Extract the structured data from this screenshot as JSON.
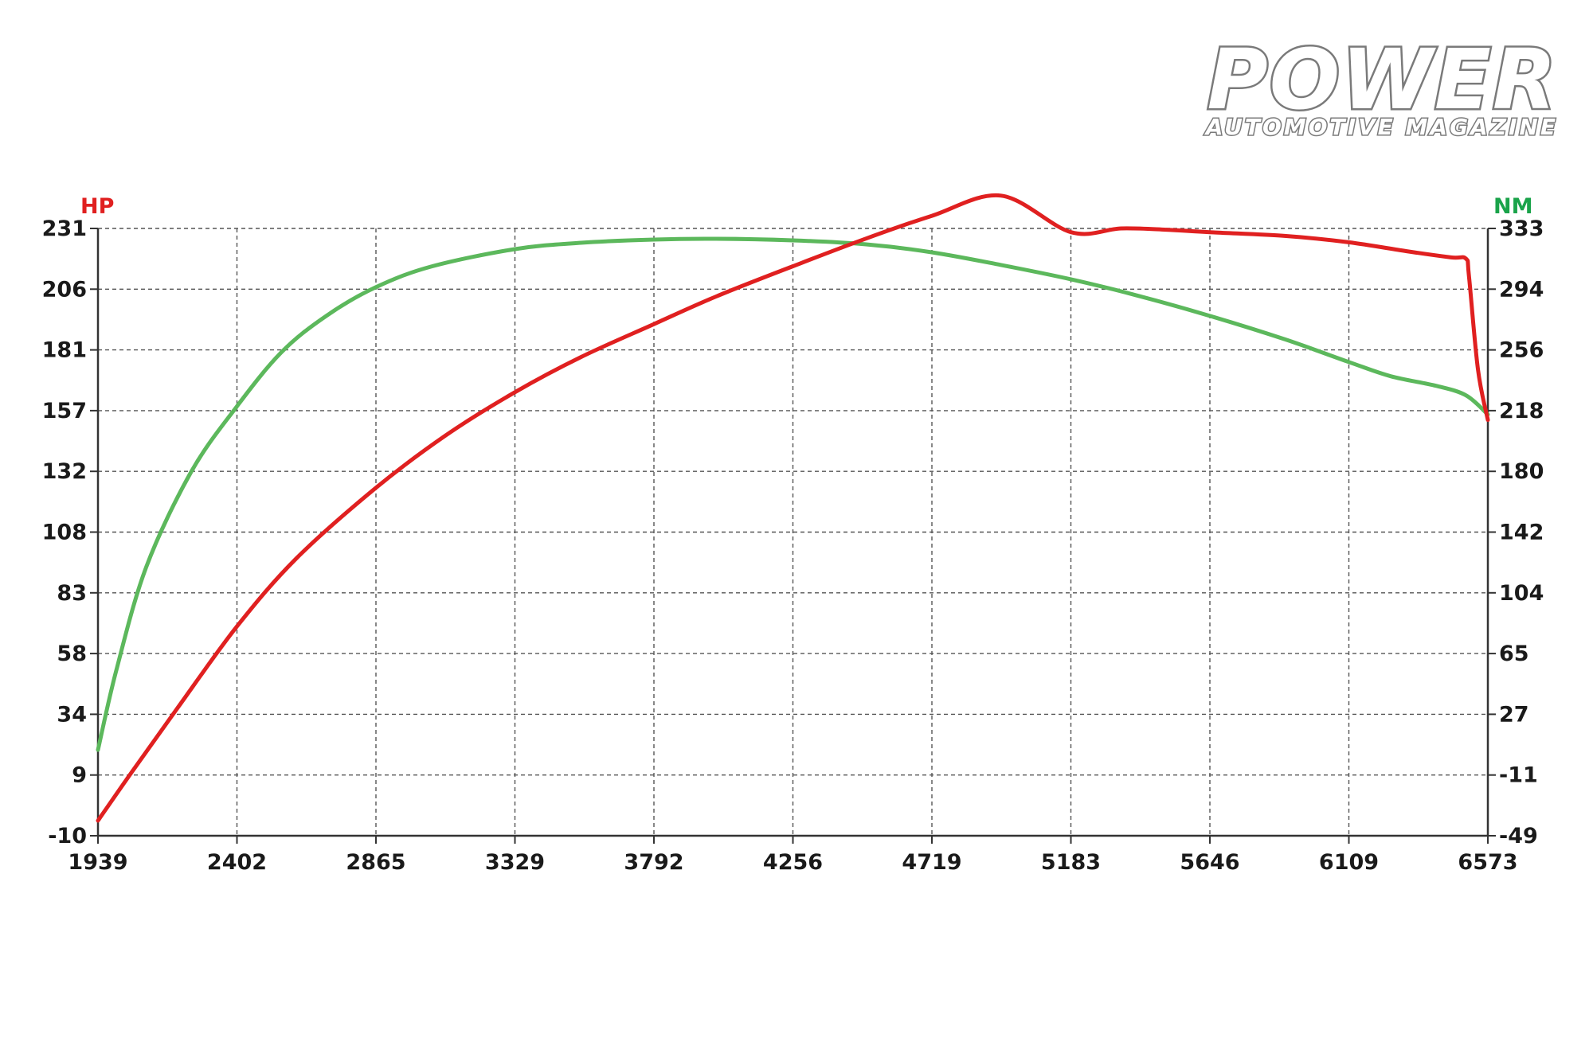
{
  "brand": {
    "name": "POWER",
    "tagline": "AUTOMOTIVE MAGAZINE"
  },
  "chart_data": {
    "type": "line",
    "xlabel": "",
    "x_ticks": [
      1939,
      2402,
      2865,
      3329,
      3792,
      4256,
      4719,
      5183,
      5646,
      6109,
      6573
    ],
    "xlim": [
      1939,
      6573
    ],
    "left_axis": {
      "label": "HP",
      "color": "#e02020",
      "ticks": [
        231,
        206,
        181,
        157,
        132,
        108,
        83,
        58,
        34,
        9,
        -10
      ],
      "ylim": [
        -10,
        231
      ]
    },
    "right_axis": {
      "label": "NM",
      "color": "#1aa34a",
      "ticks": [
        333,
        294,
        256,
        218,
        180,
        142,
        104,
        65,
        27,
        -11,
        -49
      ],
      "ylim": [
        -49,
        333
      ]
    },
    "grid": true,
    "series": [
      {
        "name": "HP",
        "axis": "left",
        "color": "#e02020",
        "x": [
          1939,
          2050,
          2200,
          2402,
          2600,
          2865,
          3100,
          3329,
          3550,
          3792,
          4000,
          4256,
          4500,
          4719,
          4950,
          5183,
          5350,
          5500,
          5646,
          5900,
          6109,
          6300,
          6450,
          6500,
          6510,
          6540,
          6573
        ],
        "y": [
          -4,
          15,
          40,
          73,
          100,
          128,
          149,
          166,
          180,
          193,
          204,
          216,
          227,
          236,
          244,
          229.5,
          231,
          230.5,
          229.5,
          228,
          225.5,
          222,
          219.5,
          219,
          212,
          175,
          155
        ]
      },
      {
        "name": "NM",
        "axis": "right",
        "color": "#5cb85c",
        "x": [
          1939,
          2000,
          2100,
          2250,
          2402,
          2550,
          2700,
          2865,
          3050,
          3329,
          3550,
          3792,
          4000,
          4256,
          4500,
          4719,
          4950,
          5183,
          5400,
          5646,
          5900,
          6109,
          6250,
          6400,
          6500,
          6573
        ],
        "y": [
          5,
          55,
          120,
          180,
          221,
          255,
          278,
          296,
          309,
          320,
          324,
          326,
          326.5,
          325.5,
          323,
          318,
          310,
          301,
          291,
          278,
          263,
          249,
          240,
          234,
          228,
          216
        ]
      }
    ]
  }
}
